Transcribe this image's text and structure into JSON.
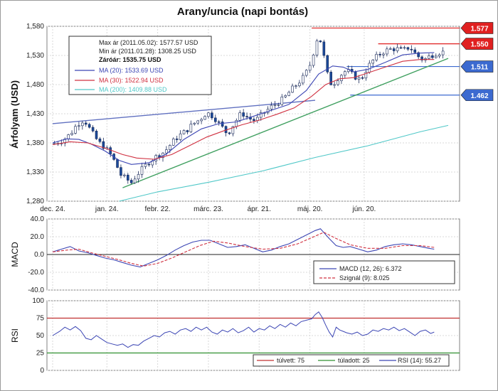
{
  "chart_data": [
    {
      "type": "candlestick",
      "title": "Arany/uncia (napi bontás)",
      "ylabel": "Árfolyam (USD)",
      "ylim": [
        1280,
        1580
      ],
      "yticks": [
        "1,280",
        "1,330",
        "1,380",
        "1,430",
        "1,480",
        "1,530",
        "1,580"
      ],
      "yticks_values": [
        1280,
        1330,
        1380,
        1430,
        1480,
        1530,
        1580
      ],
      "xticks": [
        "dec. 24.",
        "jan. 24.",
        "febr. 22.",
        "márc. 23.",
        "ápr. 21.",
        "máj. 20.",
        "jún. 20."
      ],
      "grid": true,
      "period_start": "2010-12-24",
      "period_end": "2011-06-20",
      "info_box": {
        "max_line": "Max ár (2011.05.02): 1577.57 USD",
        "min_line": "Min ár (2011.01.28): 1308.25 USD",
        "close_line": "Záróár: 1535.75 USD",
        "ma_legend": [
          {
            "label": "MA (20): 1533.69 USD",
            "color": "#3c46b4"
          },
          {
            "label": "MA (30): 1522.94 USD",
            "color": "#d03040"
          },
          {
            "label": "MA (200): 1409.88 USD",
            "color": "#50c8c8"
          }
        ]
      },
      "series": [
        {
          "name": "MA (20)",
          "color": "#3c46b4",
          "points": [
            [
              0,
              1380
            ],
            [
              8,
              1387
            ],
            [
              15,
              1386
            ],
            [
              22,
              1378
            ],
            [
              30,
              1366
            ],
            [
              38,
              1350
            ],
            [
              45,
              1343
            ],
            [
              55,
              1346
            ],
            [
              65,
              1361
            ],
            [
              75,
              1386
            ],
            [
              85,
              1404
            ],
            [
              95,
              1413
            ],
            [
              105,
              1416
            ],
            [
              115,
              1426
            ],
            [
              125,
              1436
            ],
            [
              135,
              1446
            ],
            [
              145,
              1470
            ],
            [
              152,
              1498
            ],
            [
              160,
              1512
            ],
            [
              166,
              1510
            ],
            [
              172,
              1502
            ],
            [
              180,
              1506
            ],
            [
              190,
              1518
            ],
            [
              200,
              1531
            ],
            [
              210,
              1534
            ],
            [
              218,
              1535
            ]
          ]
        },
        {
          "name": "MA (30)",
          "color": "#d03040",
          "points": [
            [
              0,
              1377
            ],
            [
              10,
              1382
            ],
            [
              20,
              1380
            ],
            [
              30,
              1371
            ],
            [
              40,
              1360
            ],
            [
              48,
              1354
            ],
            [
              58,
              1352
            ],
            [
              68,
              1360
            ],
            [
              78,
              1375
            ],
            [
              88,
              1390
            ],
            [
              98,
              1401
            ],
            [
              108,
              1411
            ],
            [
              118,
              1419
            ],
            [
              128,
              1429
            ],
            [
              138,
              1440
            ],
            [
              148,
              1460
            ],
            [
              156,
              1480
            ],
            [
              164,
              1490
            ],
            [
              172,
              1492
            ],
            [
              180,
              1500
            ],
            [
              190,
              1510
            ],
            [
              200,
              1520
            ],
            [
              210,
              1523
            ],
            [
              218,
              1523
            ]
          ]
        },
        {
          "name": "MA (200)",
          "color": "#50c8c8",
          "points": [
            [
              38,
              1280
            ],
            [
              60,
              1296
            ],
            [
              90,
              1313
            ],
            [
              120,
              1332
            ],
            [
              150,
              1355
            ],
            [
              180,
              1375
            ],
            [
              210,
              1399
            ],
            [
              226,
              1410
            ]
          ]
        }
      ],
      "trendlines": [
        {
          "name": "blue-resistance",
          "color": "#6070c0",
          "points": [
            [
              0,
              1413
            ],
            [
              150,
              1453
            ]
          ]
        },
        {
          "name": "green-support",
          "color": "#40a060",
          "points": [
            [
              40,
              1303
            ],
            [
              226,
              1525
            ]
          ]
        }
      ],
      "levels": [
        {
          "value": 1577,
          "label": "1.577",
          "color": "#e02020",
          "x_start": 148
        },
        {
          "value": 1550,
          "label": "1.550",
          "color": "#e02020",
          "x_start": 186
        },
        {
          "value": 1511,
          "label": "1.511",
          "color": "#3c6ad0",
          "x_start": 168
        },
        {
          "value": 1462,
          "label": "1.462",
          "color": "#3c6ad0",
          "x_start": 170
        }
      ],
      "candle_colors": {
        "up": "#ffffff",
        "down": "#1a4a9a",
        "outline": "#1a2a5a"
      }
    },
    {
      "type": "line",
      "ylabel": "MACD",
      "ylim": [
        -40,
        40
      ],
      "yticks": [
        "40.0",
        "20.0",
        "0.0",
        "-20.0",
        "-40.0"
      ],
      "yticks_values": [
        40,
        20,
        0,
        -20,
        -40
      ],
      "grid": true,
      "legend": [
        {
          "label": "MACD (12, 26): 6.372",
          "color": "#3c46b4",
          "dash": false
        },
        {
          "label": "Szignál (9): 8.025",
          "color": "#d03040",
          "dash": true
        }
      ],
      "series": [
        {
          "name": "MACD (12, 26)",
          "color": "#3c46b4",
          "points": [
            [
              0,
              3
            ],
            [
              5,
              6
            ],
            [
              10,
              9
            ],
            [
              15,
              4
            ],
            [
              20,
              2
            ],
            [
              25,
              -1
            ],
            [
              30,
              -4
            ],
            [
              35,
              -6
            ],
            [
              40,
              -9
            ],
            [
              45,
              -12
            ],
            [
              50,
              -14
            ],
            [
              55,
              -10
            ],
            [
              60,
              -6
            ],
            [
              65,
              -1
            ],
            [
              70,
              5
            ],
            [
              75,
              10
            ],
            [
              80,
              14
            ],
            [
              85,
              16
            ],
            [
              90,
              16
            ],
            [
              95,
              12
            ],
            [
              100,
              8
            ],
            [
              105,
              9
            ],
            [
              110,
              11
            ],
            [
              115,
              7
            ],
            [
              120,
              3
            ],
            [
              125,
              5
            ],
            [
              130,
              9
            ],
            [
              135,
              12
            ],
            [
              140,
              17
            ],
            [
              145,
              22
            ],
            [
              150,
              27
            ],
            [
              153,
              29
            ],
            [
              158,
              18
            ],
            [
              162,
              10
            ],
            [
              166,
              8
            ],
            [
              170,
              9
            ],
            [
              175,
              6
            ],
            [
              180,
              3
            ],
            [
              185,
              5
            ],
            [
              190,
              9
            ],
            [
              195,
              11
            ],
            [
              200,
              12
            ],
            [
              205,
              11
            ],
            [
              210,
              9
            ],
            [
              215,
              7
            ],
            [
              218,
              6
            ]
          ]
        },
        {
          "name": "Szignál (9)",
          "color": "#d03040",
          "dash": true,
          "points": [
            [
              0,
              3
            ],
            [
              8,
              5
            ],
            [
              15,
              6
            ],
            [
              22,
              2
            ],
            [
              30,
              -2
            ],
            [
              38,
              -6
            ],
            [
              45,
              -10
            ],
            [
              52,
              -13
            ],
            [
              60,
              -10
            ],
            [
              68,
              -4
            ],
            [
              76,
              3
            ],
            [
              84,
              10
            ],
            [
              92,
              15
            ],
            [
              100,
              13
            ],
            [
              110,
              9
            ],
            [
              120,
              6
            ],
            [
              130,
              7
            ],
            [
              140,
              12
            ],
            [
              148,
              19
            ],
            [
              155,
              25
            ],
            [
              162,
              18
            ],
            [
              170,
              11
            ],
            [
              180,
              7
            ],
            [
              190,
              7
            ],
            [
              200,
              10
            ],
            [
              210,
              10
            ],
            [
              218,
              8
            ]
          ]
        }
      ]
    },
    {
      "type": "line",
      "ylabel": "RSI",
      "ylim": [
        0,
        100
      ],
      "yticks": [
        "100",
        "75",
        "50",
        "25",
        "0"
      ],
      "yticks_values": [
        100,
        75,
        50,
        25,
        0
      ],
      "grid": true,
      "levels": [
        {
          "value": 75,
          "color": "#c03030"
        },
        {
          "value": 25,
          "color": "#309030"
        }
      ],
      "legend": [
        {
          "label": "túlvett: 75",
          "color": "#c03030"
        },
        {
          "label": "túladott: 25",
          "color": "#309030"
        },
        {
          "label": "RSI (14): 55.27",
          "color": "#3c46b4"
        }
      ],
      "series": [
        {
          "name": "RSI (14)",
          "color": "#3c46b4",
          "points": [
            [
              0,
              50
            ],
            [
              4,
              56
            ],
            [
              7,
              62
            ],
            [
              10,
              58
            ],
            [
              13,
              63
            ],
            [
              16,
              57
            ],
            [
              19,
              46
            ],
            [
              22,
              44
            ],
            [
              25,
              50
            ],
            [
              28,
              45
            ],
            [
              31,
              40
            ],
            [
              34,
              38
            ],
            [
              37,
              36
            ],
            [
              40,
              38
            ],
            [
              43,
              33
            ],
            [
              46,
              37
            ],
            [
              49,
              36
            ],
            [
              52,
              42
            ],
            [
              55,
              46
            ],
            [
              58,
              50
            ],
            [
              61,
              48
            ],
            [
              64,
              54
            ],
            [
              67,
              56
            ],
            [
              70,
              52
            ],
            [
              73,
              58
            ],
            [
              76,
              60
            ],
            [
              79,
              56
            ],
            [
              82,
              62
            ],
            [
              85,
              58
            ],
            [
              88,
              62
            ],
            [
              91,
              55
            ],
            [
              94,
              52
            ],
            [
              97,
              58
            ],
            [
              100,
              55
            ],
            [
              103,
              60
            ],
            [
              106,
              54
            ],
            [
              109,
              57
            ],
            [
              112,
              62
            ],
            [
              115,
              55
            ],
            [
              118,
              60
            ],
            [
              121,
              58
            ],
            [
              124,
              64
            ],
            [
              127,
              60
            ],
            [
              130,
              66
            ],
            [
              133,
              62
            ],
            [
              136,
              68
            ],
            [
              139,
              64
            ],
            [
              142,
              70
            ],
            [
              145,
              72
            ],
            [
              148,
              74
            ],
            [
              150,
              80
            ],
            [
              152,
              84
            ],
            [
              154,
              76
            ],
            [
              156,
              65
            ],
            [
              158,
              55
            ],
            [
              160,
              48
            ],
            [
              162,
              62
            ],
            [
              164,
              58
            ],
            [
              166,
              56
            ],
            [
              168,
              54
            ],
            [
              171,
              52
            ],
            [
              174,
              55
            ],
            [
              177,
              50
            ],
            [
              180,
              52
            ],
            [
              183,
              58
            ],
            [
              186,
              56
            ],
            [
              189,
              60
            ],
            [
              192,
              58
            ],
            [
              195,
              62
            ],
            [
              198,
              57
            ],
            [
              201,
              60
            ],
            [
              204,
              55
            ],
            [
              207,
              50
            ],
            [
              210,
              56
            ],
            [
              213,
              58
            ],
            [
              216,
              53
            ],
            [
              218,
              55
            ]
          ]
        }
      ]
    }
  ]
}
